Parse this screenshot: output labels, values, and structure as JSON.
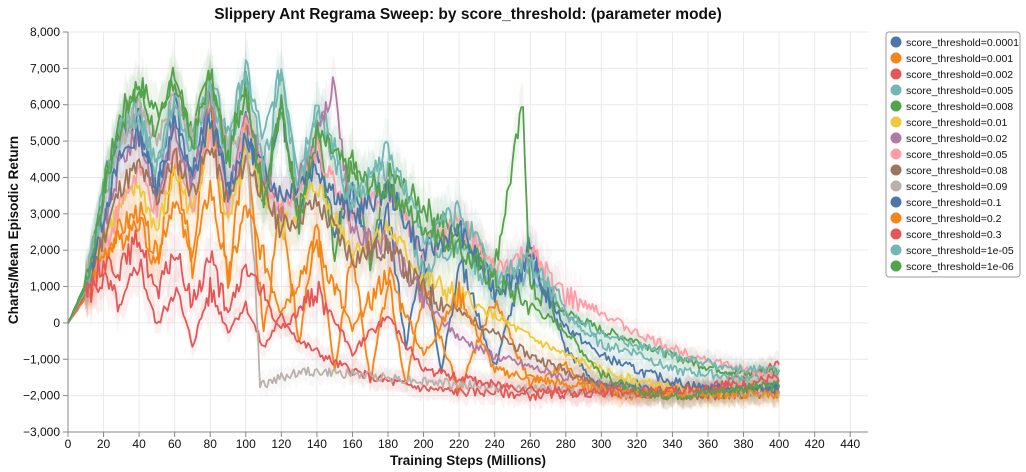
{
  "chart_data": {
    "type": "line",
    "title": "Slippery Ant Regrama Sweep: by score_threshold: (parameter mode)",
    "xlabel": "Training Steps (Millions)",
    "ylabel": "Charts/Mean Episodic Return",
    "xlim": [
      0,
      450
    ],
    "ylim": [
      -3000,
      8000
    ],
    "x_ticks": [
      "0",
      "20",
      "40",
      "60",
      "80",
      "100",
      "120",
      "140",
      "160",
      "180",
      "200",
      "220",
      "240",
      "260",
      "280",
      "300",
      "320",
      "340",
      "360",
      "380",
      "400",
      "420",
      "440"
    ],
    "y_ticks": [
      "−3,000",
      "−2,000",
      "−1,000",
      "0",
      "1,000",
      "2,000",
      "3,000",
      "4,000",
      "5,000",
      "6,000",
      "7,000",
      "8,000"
    ],
    "x_tick_values": [
      0,
      20,
      40,
      60,
      80,
      100,
      120,
      140,
      160,
      180,
      200,
      220,
      240,
      260,
      280,
      300,
      320,
      340,
      360,
      380,
      400,
      420,
      440
    ],
    "y_tick_values": [
      -3000,
      -2000,
      -1000,
      0,
      1000,
      2000,
      3000,
      4000,
      5000,
      6000,
      7000,
      8000
    ],
    "grid": true,
    "legend_position": "right",
    "series": [
      {
        "name": "score_threshold=0.0001",
        "color": "#4c78a8",
        "x": [
          0,
          10,
          20,
          30,
          40,
          50,
          60,
          70,
          80,
          90,
          100,
          110,
          120,
          130,
          140,
          150,
          160,
          170,
          180,
          190,
          200,
          210,
          220,
          240,
          260,
          280,
          300,
          320,
          340,
          360,
          380,
          400
        ],
        "y": [
          0,
          900,
          3500,
          5400,
          5600,
          3600,
          6000,
          4000,
          6200,
          3600,
          5500,
          3200,
          5800,
          3300,
          5000,
          2400,
          3800,
          1800,
          3000,
          -600,
          2000,
          -1400,
          1800,
          -1200,
          2200,
          -700,
          -1800,
          -1700,
          -1900,
          -1800,
          -1900,
          -1700
        ]
      },
      {
        "name": "score_threshold=0.001",
        "color": "#f58518",
        "x": [
          0,
          10,
          20,
          30,
          40,
          50,
          60,
          70,
          80,
          90,
          100,
          110,
          120,
          130,
          140,
          150,
          160,
          170,
          180,
          190,
          200,
          220,
          240,
          260,
          280,
          300,
          320,
          340,
          360,
          380,
          400
        ],
        "y": [
          0,
          800,
          2000,
          2300,
          2900,
          1500,
          4600,
          1600,
          6600,
          1000,
          5200,
          -300,
          3400,
          -600,
          2700,
          -1300,
          2000,
          -1600,
          1200,
          -1800,
          1000,
          -1900,
          700,
          -1700,
          -1200,
          -1900,
          -2000,
          -1900,
          -2000,
          -1950,
          -1950
        ]
      },
      {
        "name": "score_threshold=0.002",
        "color": "#e45756",
        "x": [
          0,
          10,
          20,
          30,
          40,
          50,
          60,
          70,
          80,
          90,
          100,
          110,
          120,
          130,
          140,
          150,
          160,
          170,
          180,
          200,
          220,
          240,
          260,
          280,
          300,
          320,
          340,
          360,
          380,
          400
        ],
        "y": [
          0,
          700,
          1200,
          400,
          1700,
          -100,
          1000,
          -600,
          900,
          -200,
          500,
          -700,
          200,
          -500,
          -800,
          -1100,
          -1300,
          -1500,
          -1600,
          -1800,
          -1900,
          -1900,
          -2000,
          -1950,
          -1900,
          -1950,
          -1900,
          -1800,
          -1500,
          -1100
        ]
      },
      {
        "name": "score_threshold=0.005",
        "color": "#72b7b2",
        "x": [
          0,
          10,
          20,
          30,
          40,
          50,
          60,
          70,
          80,
          90,
          100,
          110,
          120,
          130,
          140,
          160,
          180,
          200,
          220,
          240,
          260,
          280,
          300,
          320,
          340,
          360,
          380,
          400
        ],
        "y": [
          0,
          1000,
          3700,
          5600,
          5900,
          4200,
          6400,
          5100,
          6700,
          5200,
          7000,
          5000,
          7000,
          4200,
          6100,
          3500,
          4200,
          1400,
          2300,
          800,
          1500,
          200,
          -600,
          -800,
          -1300,
          -1400,
          -1500,
          -1400
        ]
      },
      {
        "name": "score_threshold=0.008",
        "color": "#54a24b",
        "x": [
          0,
          10,
          20,
          30,
          40,
          50,
          60,
          70,
          80,
          90,
          100,
          110,
          120,
          130,
          140,
          150,
          160,
          170,
          180,
          200,
          220,
          240,
          256,
          260,
          280,
          300,
          320,
          340,
          360,
          380,
          400
        ],
        "y": [
          0,
          1100,
          3700,
          5800,
          6600,
          5800,
          6800,
          5200,
          6900,
          4600,
          6700,
          3200,
          6100,
          2800,
          5400,
          2000,
          4800,
          1500,
          4100,
          3200,
          2400,
          1500,
          6000,
          900,
          300,
          -200,
          -500,
          -900,
          -1200,
          -1400,
          -1300
        ]
      },
      {
        "name": "score_threshold=0.01",
        "color": "#eeca3b",
        "x": [
          0,
          10,
          20,
          30,
          40,
          50,
          60,
          70,
          80,
          90,
          100,
          120,
          140,
          160,
          180,
          200,
          220,
          240,
          260,
          280,
          300,
          320,
          340,
          360,
          380,
          400
        ],
        "y": [
          0,
          800,
          2400,
          3200,
          3800,
          2500,
          4200,
          3000,
          5400,
          2600,
          4600,
          2500,
          3800,
          2000,
          2600,
          1200,
          700,
          200,
          -400,
          -900,
          -1300,
          -1600,
          -1800,
          -1900,
          -1900,
          -1900
        ]
      },
      {
        "name": "score_threshold=0.02",
        "color": "#b279a2",
        "x": [
          0,
          10,
          20,
          30,
          40,
          50,
          60,
          70,
          80,
          90,
          100,
          120,
          140,
          150,
          160,
          180,
          200,
          220,
          240,
          260,
          280,
          300,
          320,
          340,
          360,
          380,
          400
        ],
        "y": [
          0,
          800,
          2600,
          4500,
          5200,
          3400,
          5400,
          3800,
          6200,
          3500,
          5600,
          3000,
          5000,
          6600,
          2400,
          2200,
          600,
          -400,
          -900,
          -1200,
          -1500,
          -1700,
          -1900,
          -2000,
          -1950,
          -1900,
          -1900
        ]
      },
      {
        "name": "score_threshold=0.05",
        "color": "#ff9da6",
        "x": [
          0,
          10,
          20,
          30,
          40,
          50,
          60,
          70,
          80,
          90,
          100,
          120,
          140,
          160,
          180,
          200,
          220,
          240,
          260,
          280,
          300,
          320,
          340,
          360,
          380,
          400
        ],
        "y": [
          0,
          700,
          2000,
          3300,
          4200,
          3000,
          4700,
          3200,
          5300,
          3300,
          5500,
          3000,
          4800,
          2800,
          3700,
          2000,
          2800,
          1400,
          1900,
          700,
          300,
          -300,
          -700,
          -1000,
          -1300,
          -1500
        ]
      },
      {
        "name": "score_threshold=0.08",
        "color": "#9d755d",
        "x": [
          0,
          10,
          20,
          30,
          40,
          50,
          60,
          70,
          80,
          90,
          100,
          120,
          140,
          160,
          180,
          200,
          220,
          240,
          260,
          280,
          300,
          320,
          340,
          360,
          380,
          400
        ],
        "y": [
          0,
          800,
          2400,
          3800,
          4300,
          3400,
          4600,
          3600,
          4900,
          3300,
          4500,
          2600,
          3300,
          1800,
          2100,
          900,
          300,
          -300,
          -900,
          -1300,
          -1700,
          -1900,
          -2000,
          -2000,
          -1950,
          -1950
        ]
      },
      {
        "name": "score_threshold=0.09",
        "color": "#bab0ac",
        "x": [
          0,
          10,
          20,
          30,
          40,
          50,
          60,
          70,
          80,
          90,
          100,
          105,
          108,
          112,
          120,
          130,
          140,
          160,
          180,
          200,
          220,
          240,
          260,
          280,
          300,
          320,
          340,
          360,
          380,
          400
        ],
        "y": [
          0,
          900,
          3400,
          5100,
          5900,
          5100,
          6300,
          5200,
          6400,
          5000,
          5200,
          1500,
          -1750,
          -1650,
          -1500,
          -1350,
          -1350,
          -1400,
          -1500,
          -1600,
          -1700,
          -1750,
          -1800,
          -1850,
          -1900,
          -1950,
          -1950,
          -1950,
          -1950,
          -1950
        ]
      },
      {
        "name": "score_threshold=0.1",
        "color": "#4c78a8",
        "x": [
          0,
          10,
          20,
          30,
          40,
          50,
          60,
          70,
          80,
          90,
          100,
          120,
          140,
          160,
          180,
          200,
          220,
          240,
          260,
          280,
          300,
          320,
          340,
          360,
          380,
          400
        ],
        "y": [
          0,
          900,
          3000,
          4600,
          5200,
          3800,
          5400,
          3900,
          5600,
          3700,
          5000,
          3500,
          4300,
          2900,
          3700,
          1900,
          2600,
          900,
          1600,
          -100,
          -900,
          -1300,
          -1600,
          -1800,
          -1800,
          -1800
        ]
      },
      {
        "name": "score_threshold=0.2",
        "color": "#f58518",
        "x": [
          0,
          10,
          20,
          30,
          40,
          50,
          60,
          70,
          80,
          90,
          100,
          120,
          140,
          160,
          180,
          200,
          220,
          240,
          260,
          280,
          300,
          320,
          340,
          360,
          380,
          400
        ],
        "y": [
          0,
          700,
          1900,
          2600,
          3100,
          1800,
          3500,
          1500,
          3800,
          1100,
          3200,
          400,
          2200,
          -200,
          1400,
          -900,
          800,
          -1300,
          -1500,
          -1700,
          -1800,
          -1900,
          -1950,
          -1950,
          -1950,
          -1950
        ]
      },
      {
        "name": "score_threshold=0.3",
        "color": "#e45756",
        "x": [
          0,
          10,
          20,
          30,
          40,
          50,
          60,
          70,
          80,
          90,
          100,
          120,
          140,
          160,
          180,
          200,
          220,
          240,
          260,
          280,
          300,
          320,
          340,
          360,
          380,
          400
        ],
        "y": [
          0,
          800,
          1700,
          1500,
          2400,
          700,
          2000,
          500,
          1900,
          200,
          1600,
          -200,
          900,
          -800,
          200,
          -1300,
          -1500,
          -1700,
          -1800,
          -1900,
          -1900,
          -1900,
          -1850,
          -1800,
          -1700,
          -1500
        ]
      },
      {
        "name": "score_threshold=1e-05",
        "color": "#72b7b2",
        "x": [
          0,
          10,
          20,
          30,
          40,
          50,
          60,
          70,
          80,
          90,
          100,
          110,
          120,
          130,
          140,
          160,
          180,
          200,
          220,
          240,
          260,
          280,
          300,
          320,
          340,
          360,
          380,
          400
        ],
        "y": [
          0,
          900,
          3400,
          5300,
          5700,
          4300,
          6200,
          4700,
          6500,
          4500,
          6900,
          4300,
          6800,
          3700,
          5800,
          3200,
          4800,
          2400,
          3100,
          1200,
          1700,
          300,
          -300,
          -600,
          -900,
          -1100,
          -1300,
          -1300
        ]
      },
      {
        "name": "score_threshold=1e-06",
        "color": "#54a24b",
        "x": [
          0,
          10,
          20,
          30,
          40,
          50,
          60,
          70,
          80,
          90,
          100,
          110,
          120,
          130,
          140,
          160,
          180,
          200,
          220,
          240,
          260,
          280,
          300,
          320,
          340,
          360,
          380,
          400
        ],
        "y": [
          0,
          1000,
          3600,
          5500,
          6400,
          5200,
          6700,
          4900,
          6900,
          4400,
          6500,
          3500,
          6000,
          3000,
          5200,
          4100,
          3600,
          2700,
          2000,
          1200,
          500,
          -200,
          -1400,
          -1900,
          -2000,
          -1900,
          -1800,
          -1700
        ]
      }
    ]
  }
}
